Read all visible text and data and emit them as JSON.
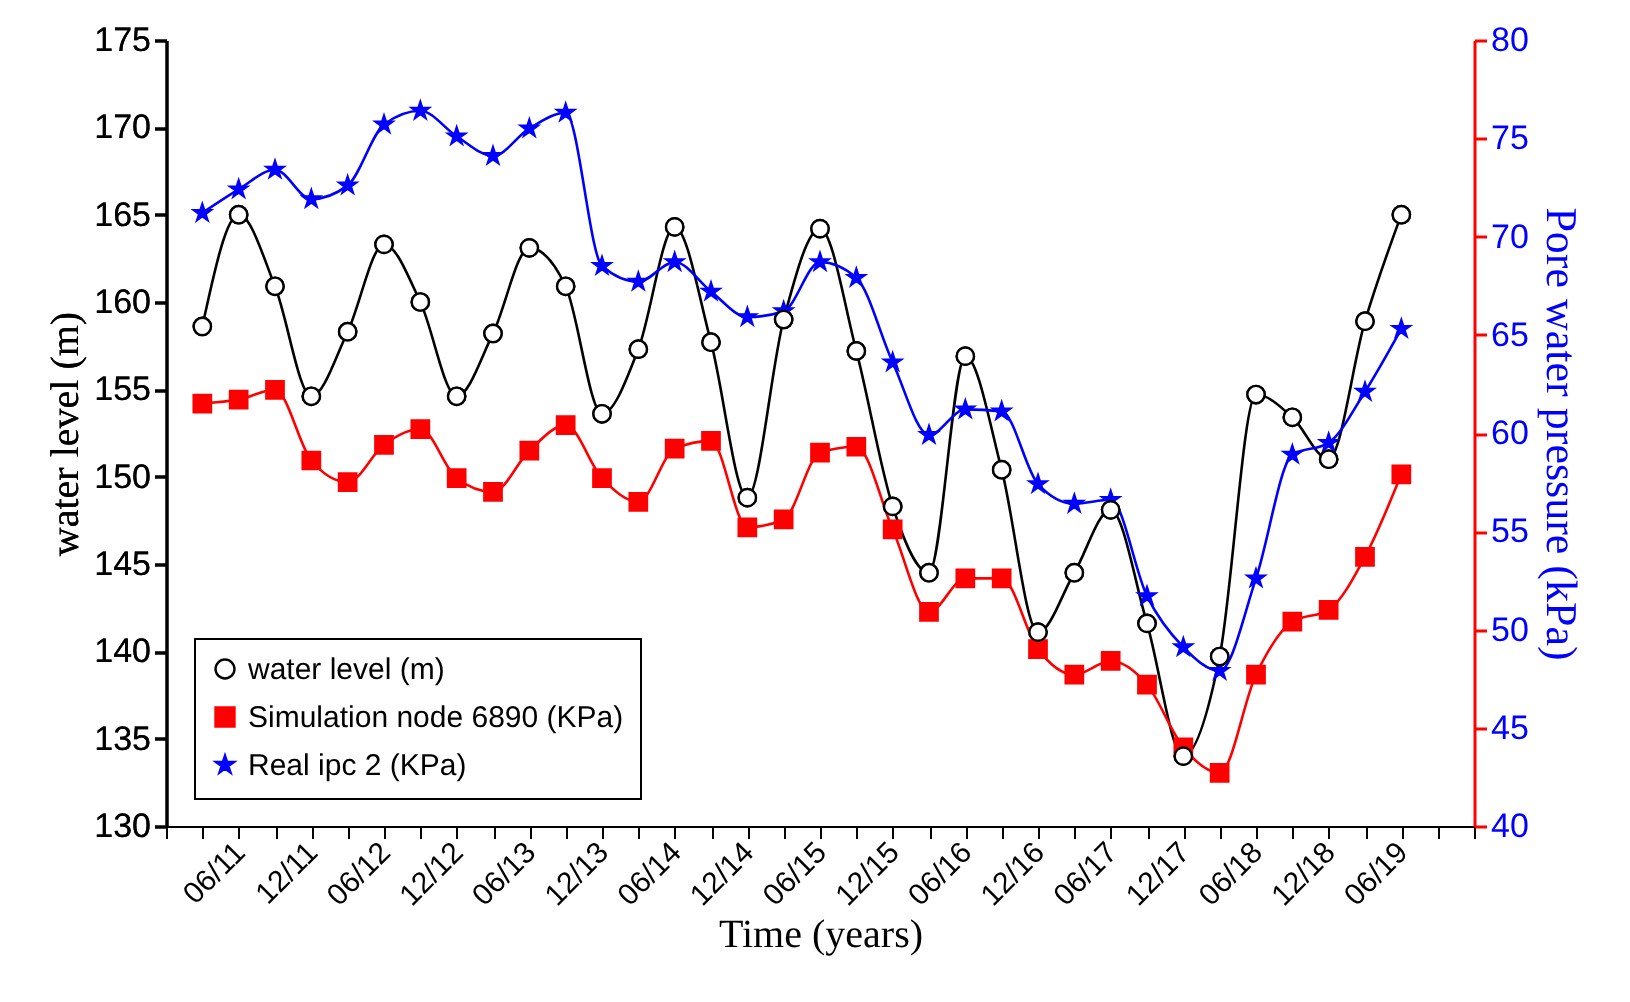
{
  "chart_data": {
    "type": "line",
    "xlabel": "Time (years)",
    "ylabel": "water level (m)",
    "y2label": "Pore water pressure  (kPa)",
    "categories": [
      null,
      "06/11",
      null,
      "12/11",
      null,
      "06/12",
      null,
      "12/12",
      null,
      "06/13",
      null,
      "12/13",
      null,
      "06/14",
      null,
      "12/14",
      null,
      "06/15",
      null,
      "12/15",
      null,
      "06/16",
      null,
      "12/16",
      null,
      "06/17",
      null,
      "12/17",
      null,
      "06/18",
      null,
      "12/18",
      null,
      "06/19"
    ],
    "ylim": [
      130,
      175
    ],
    "yticks": [
      130,
      135,
      140,
      145,
      150,
      155,
      160,
      165,
      170,
      175
    ],
    "y2lim": [
      40,
      80
    ],
    "y2ticks": [
      40,
      45,
      50,
      55,
      60,
      65,
      70,
      75,
      80
    ],
    "grid": false,
    "legend": "bottom left",
    "series": [
      {
        "name": "water level (m)",
        "color": "#000000",
        "marker": "circle",
        "values": [
          158.6,
          165.0,
          160.9,
          154.6,
          158.3,
          163.3,
          160.0,
          154.6,
          158.2,
          163.1,
          160.9,
          153.6,
          157.3,
          164.3,
          157.7,
          148.8,
          159.0,
          164.2,
          157.2,
          148.3,
          144.5,
          156.9,
          150.4,
          141.1,
          144.5,
          148.1,
          141.6,
          134.0,
          139.7,
          154.7,
          153.4,
          151.0,
          158.9,
          165.0
        ]
      },
      {
        "name": "Simulation node 6890 (KPa)",
        "color": "#ff0000",
        "marker": "square",
        "axis": "y2",
        "values": [
          61.5,
          61.7,
          62.2,
          58.6,
          57.5,
          59.4,
          60.2,
          57.7,
          57.0,
          59.1,
          60.4,
          57.7,
          56.5,
          59.2,
          59.6,
          55.2,
          55.6,
          59.0,
          59.3,
          55.1,
          50.9,
          52.6,
          52.6,
          49.0,
          47.7,
          48.4,
          47.2,
          44.0,
          42.7,
          47.7,
          50.4,
          51.0,
          53.7,
          57.9
        ]
      },
      {
        "name": "Real ipc 2 (KPa)",
        "color": "#0000ff",
        "marker": "star",
        "axis": "y2",
        "values": [
          71.2,
          72.4,
          73.4,
          71.9,
          72.6,
          75.7,
          76.4,
          75.1,
          74.1,
          75.5,
          76.3,
          68.5,
          67.7,
          68.7,
          67.2,
          65.9,
          66.2,
          68.7,
          67.9,
          63.6,
          59.9,
          61.2,
          61.1,
          57.4,
          56.4,
          56.6,
          51.7,
          49.1,
          47.9,
          52.6,
          58.9,
          59.5,
          62.1,
          65.3
        ]
      }
    ]
  }
}
